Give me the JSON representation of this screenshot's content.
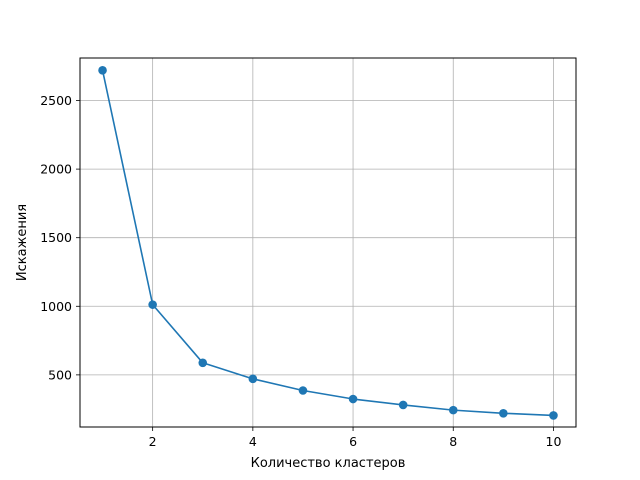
{
  "chart_data": {
    "type": "line",
    "title": "",
    "xlabel": "Количество кластеров",
    "ylabel": "Искажения",
    "x": [
      1,
      2,
      3,
      4,
      5,
      6,
      7,
      8,
      9,
      10
    ],
    "series": [
      {
        "values": [
          2720,
          1012,
          588,
          471,
          386,
          324,
          281,
          243,
          220,
          204
        ],
        "color": "#1f77b4",
        "marker": "circle"
      }
    ],
    "xlim": [
      0.55,
      10.45
    ],
    "ylim": [
      120,
      2810
    ],
    "xticks": [
      2,
      4,
      6,
      8,
      10
    ],
    "yticks": [
      500,
      1000,
      1500,
      2000,
      2500
    ],
    "grid": true,
    "legend": false
  }
}
